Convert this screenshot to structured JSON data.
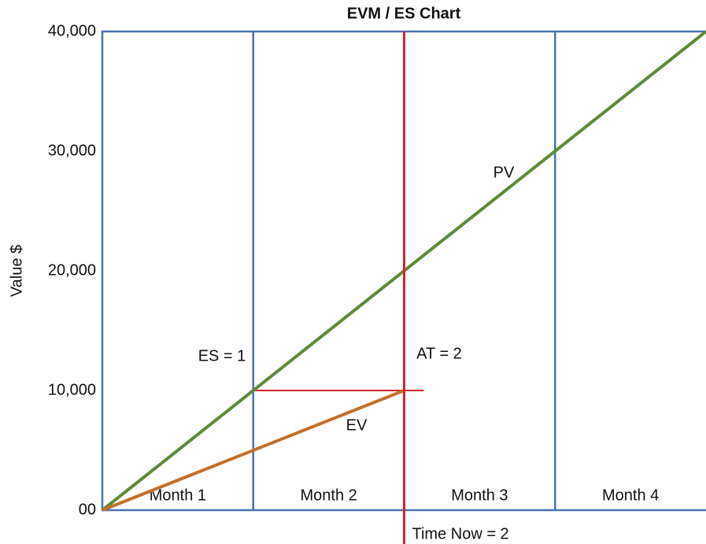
{
  "chart_data": {
    "type": "line",
    "title": "EVM / ES Chart",
    "ylabel": "Value $",
    "categories": [
      "Month 1",
      "Month 2",
      "Month 3",
      "Month 4"
    ],
    "xlim": [
      0,
      4
    ],
    "xticks": [
      1,
      2,
      3
    ],
    "ylim": [
      0,
      40000
    ],
    "yticks": [
      {
        "value": 0,
        "label": "00"
      },
      {
        "value": 10000,
        "label": "10,000"
      },
      {
        "value": 20000,
        "label": "20,000"
      },
      {
        "value": 30000,
        "label": "30,000"
      },
      {
        "value": 40000,
        "label": "40,000"
      }
    ],
    "grid": true,
    "grid_color": "#4a72b0",
    "series": [
      {
        "name": "PV",
        "color": "#5b8c3a",
        "x": [
          0,
          4
        ],
        "values": [
          0,
          40000
        ]
      },
      {
        "name": "EV",
        "color": "#c4702a",
        "x": [
          0,
          2
        ],
        "values": [
          0,
          10000
        ]
      }
    ],
    "time_now": {
      "x": 2,
      "color": "#e0202a",
      "label": "Time Now = 2"
    },
    "es_line": {
      "y": 10000,
      "x": [
        1,
        2.13
      ],
      "color": "#d02828"
    },
    "annotations": [
      "ES = 1",
      "AT = 2"
    ]
  }
}
